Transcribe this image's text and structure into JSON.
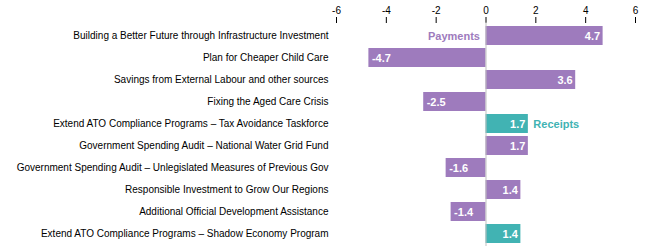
{
  "chart_data": {
    "type": "bar",
    "orientation": "horizontal",
    "categories": [
      "Building a Better Future through Infrastructure Investment",
      "Plan for Cheaper Child Care",
      "Savings from External Labour and other sources",
      "Fixing the Aged Care Crisis",
      "Extend ATO Compliance Programs – Tax Avoidance Taskforce",
      "Government Spending Audit – National Water Grid Fund",
      "Government Spending Audit – Unlegislated Measures of Previous Gov",
      "Responsible Investment to Grow Our Regions",
      "Additional Official Development Assistance",
      "Extend ATO Compliance Programs – Shadow Economy Program"
    ],
    "series": [
      {
        "name": "Payments",
        "color": "#9e7bbd",
        "values": [
          4.7,
          -4.7,
          3.6,
          -2.5,
          null,
          1.7,
          -1.6,
          1.4,
          -1.4,
          null
        ]
      },
      {
        "name": "Receipts",
        "color": "#41b3b3",
        "values": [
          null,
          null,
          null,
          null,
          1.7,
          null,
          null,
          null,
          null,
          1.4
        ]
      }
    ],
    "xlim": [
      -6,
      6
    ],
    "xticks": [
      -6,
      -4,
      -2,
      0,
      2,
      4,
      6
    ],
    "grid": false,
    "data_labels": true
  }
}
